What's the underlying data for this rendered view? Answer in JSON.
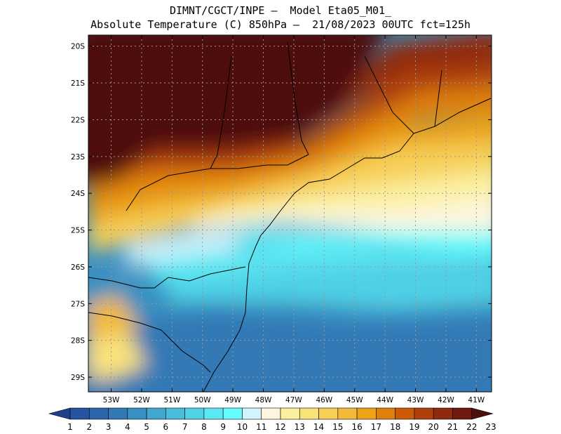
{
  "title": {
    "line1": "DIMNT/CGCT/INPE —  Model Eta05_M01_",
    "line2": "Absolute Temperature (C) 850hPa —  21/08/2023 00UTC fct=125h"
  },
  "map": {
    "lat_labels": [
      "20S",
      "21S",
      "22S",
      "23S",
      "24S",
      "25S",
      "26S",
      "27S",
      "28S",
      "29S"
    ],
    "lat_values": [
      -20,
      -21,
      -22,
      -23,
      -24,
      -25,
      -26,
      -27,
      -28,
      -29
    ],
    "lon_labels": [
      "53W",
      "52W",
      "51W",
      "50W",
      "49W",
      "48W",
      "47W",
      "46W",
      "45W",
      "44W",
      "43W",
      "42W",
      "41W"
    ],
    "lon_values": [
      -53,
      -52,
      -51,
      -50,
      -49,
      -48,
      -47,
      -46,
      -45,
      -44,
      -43,
      -42,
      -41
    ],
    "lon_range": [
      -53.75,
      -40.5
    ],
    "lat_range": [
      -29.4,
      -19.7
    ]
  },
  "colorbar": {
    "labels": [
      "1",
      "2",
      "3",
      "4",
      "5",
      "6",
      "7",
      "8",
      "9",
      "10",
      "11",
      "12",
      "13",
      "14",
      "15",
      "16",
      "17",
      "18",
      "19",
      "20",
      "21",
      "22",
      "23"
    ],
    "colors": [
      "#20408c",
      "#2654a0",
      "#2d66ad",
      "#3279b6",
      "#3990c2",
      "#42a7d0",
      "#48bddc",
      "#4fd1e6",
      "#5ce8f3",
      "#66fbfd",
      "#d2f4fc",
      "#fdf6df",
      "#fbf0a0",
      "#fae27a",
      "#f6cf57",
      "#f2b93a",
      "#eca318",
      "#df7f0c",
      "#cc5a06",
      "#b03f0a",
      "#8f2a0e",
      "#6e1a0e",
      "#4d1010"
    ]
  }
}
